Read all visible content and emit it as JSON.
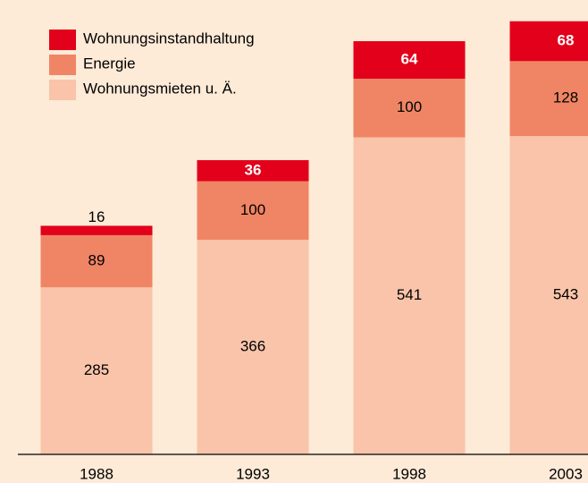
{
  "chart_data": {
    "type": "stacked_bar",
    "categories": [
      "1988",
      "1993",
      "1998",
      "2003"
    ],
    "series": [
      {
        "name": "Wohnungsmieten u. Ä.",
        "color": "#f9c4aa",
        "values": [
          285,
          366,
          541,
          543
        ]
      },
      {
        "name": "Energie",
        "color": "#ef8564",
        "values": [
          89,
          100,
          100,
          128
        ]
      },
      {
        "name": "Wohnungsinstandhaltung",
        "color": "#e2001a",
        "values": [
          16,
          36,
          64,
          68
        ]
      }
    ],
    "ylim": [
      0,
      760
    ]
  }
}
